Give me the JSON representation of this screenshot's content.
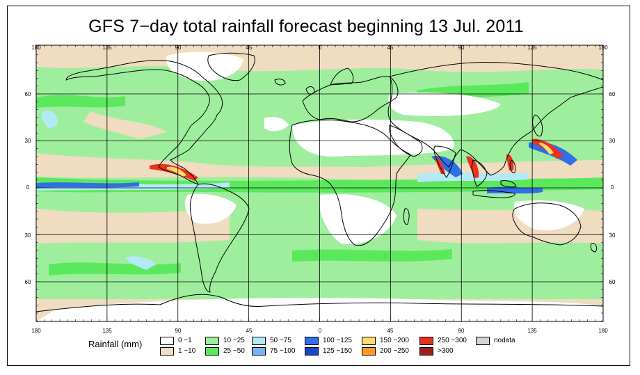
{
  "title": "GFS 7−day total rainfall forecast beginning 13 Jul. 2011",
  "map": {
    "longitude_ticks": [
      "180",
      "135",
      "90",
      "45",
      "0",
      "45",
      "90",
      "135",
      "180"
    ],
    "latitude_ticks_left": [
      "60",
      "30",
      "0",
      "30",
      "60"
    ],
    "latitude_ticks_right": [
      "60",
      "30",
      "0",
      "30",
      "60"
    ],
    "graticule_longitudes": [
      -180,
      -135,
      -90,
      -45,
      0,
      45,
      90,
      135,
      180
    ],
    "graticule_latitudes": [
      60,
      30,
      0,
      -30,
      -60
    ]
  },
  "legend": {
    "title": "Rainfall (mm)",
    "classes": [
      {
        "label": "0 −1",
        "color": "#ffffff"
      },
      {
        "label": "1 −10",
        "color": "#f0dcc0"
      },
      {
        "label": "10 −25",
        "color": "#9eee9e"
      },
      {
        "label": "25 −50",
        "color": "#5ce85c"
      },
      {
        "label": "50 −75",
        "color": "#b2eaf5"
      },
      {
        "label": "75 −100",
        "color": "#79b4f2"
      },
      {
        "label": "100 −125",
        "color": "#2f6fe8"
      },
      {
        "label": "125 −150",
        "color": "#1846c8"
      },
      {
        "label": "150 −200",
        "color": "#ffdc6e"
      },
      {
        "label": "200 −250",
        "color": "#ff9a1e"
      },
      {
        "label": "250 −300",
        "color": "#e8321e"
      },
      {
        "label": ">300",
        "color": "#9e1e1e"
      },
      {
        "label": "nodata",
        "color": "#d4d4d4"
      }
    ]
  }
}
